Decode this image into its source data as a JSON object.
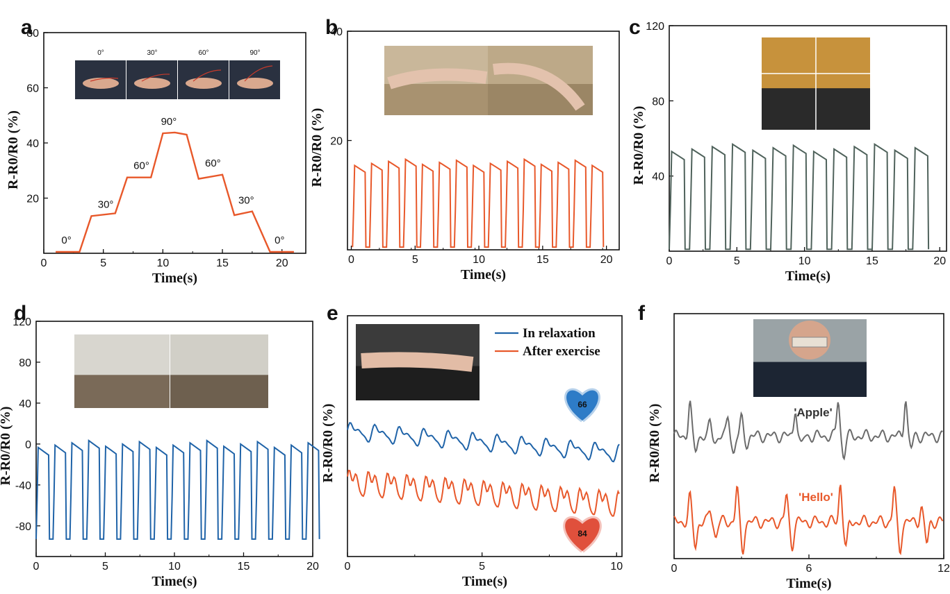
{
  "colors": {
    "orange": "#E8582A",
    "blue": "#1F63A8",
    "gray_green": "#4F625B",
    "gray": "#6B6B6B",
    "heart_blue": "#2E7CC7",
    "heart_red": "#E0503C"
  },
  "chart_data": [
    {
      "panel": "a",
      "type": "line",
      "xlabel": "Time(s)",
      "ylabel": "R-R0/R0 (%)",
      "xlim": [
        0,
        22
      ],
      "ylim": [
        0,
        80
      ],
      "xticks": [
        0,
        5,
        10,
        15,
        20
      ],
      "yticks": [
        20,
        40,
        60,
        80
      ],
      "series": [
        {
          "color": "orange",
          "x": [
            1,
            3,
            4,
            6,
            7,
            9,
            10,
            11,
            12,
            13,
            15,
            16,
            17.5,
            19,
            20,
            21
          ],
          "y": [
            0.5,
            0.5,
            13.5,
            14.5,
            27.5,
            27.5,
            43.5,
            43.8,
            43,
            27,
            28.5,
            13.8,
            15.2,
            0.5,
            0.5,
            0.5
          ]
        }
      ],
      "annotations": [
        {
          "text": "0°",
          "x": 1.9,
          "y": 2.5
        },
        {
          "text": "30°",
          "x": 5.2,
          "y": 15.5
        },
        {
          "text": "60°",
          "x": 8.2,
          "y": 29.5
        },
        {
          "text": "90°",
          "x": 10.5,
          "y": 45.5
        },
        {
          "text": "60°",
          "x": 14.2,
          "y": 30.5
        },
        {
          "text": "30°",
          "x": 17.0,
          "y": 17.0
        },
        {
          "text": "0°",
          "x": 19.8,
          "y": 2.5
        }
      ],
      "inset_labels": [
        "0°",
        "30°",
        "60°",
        "90°"
      ]
    },
    {
      "panel": "b",
      "type": "line",
      "xlabel": "Time(s)",
      "ylabel": "R-R0/R0 (%)",
      "xlim": [
        -0.3,
        21
      ],
      "ylim": [
        0,
        40
      ],
      "xticks": [
        0,
        5,
        10,
        15,
        20
      ],
      "yticks": [
        20,
        40
      ],
      "series": [
        {
          "color": "orange",
          "period": 1.33,
          "high": 16,
          "low": 0.5,
          "start": 0.1,
          "end": 20
        }
      ]
    },
    {
      "panel": "c",
      "type": "line",
      "xlabel": "Time(s)",
      "ylabel": "R-R0/R0 (%)",
      "xlim": [
        0,
        20.5
      ],
      "ylim": [
        0,
        120
      ],
      "xticks": [
        0,
        5,
        10,
        15,
        20
      ],
      "yticks": [
        40,
        80,
        120
      ],
      "series": [
        {
          "color": "gray_green",
          "period": 1.5,
          "high": 55,
          "low": 1,
          "start": 0,
          "end": 19.5
        }
      ]
    },
    {
      "panel": "d",
      "type": "line",
      "xlabel": "Time(s)",
      "ylabel": "R-R0/R0 (%)",
      "xlim": [
        0,
        20
      ],
      "ylim": [
        -110,
        120
      ],
      "xticks": [
        0,
        5,
        10,
        15,
        20
      ],
      "yticks": [
        -80,
        -40,
        0,
        40,
        80,
        120
      ],
      "series": [
        {
          "color": "blue",
          "period": 1.22,
          "high": 0,
          "low": -93,
          "start": 0,
          "end": 20
        }
      ]
    },
    {
      "panel": "e",
      "type": "line",
      "xlabel": "Time(s)",
      "ylabel": "R-R0/R0 (%)",
      "xlim": [
        0,
        10.2
      ],
      "ylim": [
        0,
        100
      ],
      "xticks": [
        0,
        5,
        10
      ],
      "yticks": [],
      "series": [
        {
          "name": "In relaxation",
          "color": "blue",
          "beats_per_min": 66
        },
        {
          "name": "After exercise",
          "color": "orange",
          "beats_per_min": 84
        }
      ],
      "badges": [
        "66",
        "84"
      ]
    },
    {
      "panel": "f",
      "type": "line",
      "xlabel": "Time(s)",
      "ylabel": "R-R0/R0 (%)",
      "xlim": [
        0,
        12
      ],
      "ylim": [
        0,
        100
      ],
      "xticks": [
        0,
        6,
        12
      ],
      "yticks": [],
      "series": [
        {
          "name": "'Apple'",
          "color": "gray"
        },
        {
          "name": "'Hello'",
          "color": "orange"
        }
      ]
    }
  ]
}
